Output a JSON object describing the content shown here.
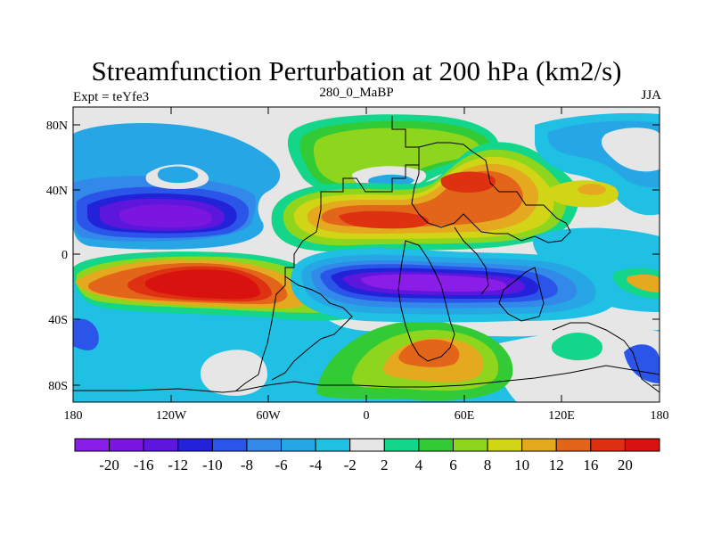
{
  "title": "Streamfunction Perturbation at 200 hPa (km2/s)",
  "subtitle_left": "Expt = teYfe3",
  "subtitle_center": "280_0_MaBP",
  "subtitle_right": "JJA",
  "yticks": [
    "80N",
    "40N",
    "0",
    "40S",
    "80S"
  ],
  "xticks": [
    "180",
    "120W",
    "60W",
    "0",
    "60E",
    "120E",
    "180"
  ],
  "colorbar": {
    "labels": [
      "-20",
      "-16",
      "-12",
      "-10",
      "-8",
      "-6",
      "-4",
      "-2",
      "2",
      "4",
      "6",
      "8",
      "10",
      "12",
      "16",
      "20"
    ],
    "colors": [
      "#8a1ee6",
      "#7a16e0",
      "#5c16dc",
      "#2222d8",
      "#2b55e8",
      "#3289ea",
      "#27a6e6",
      "#1fc0e4",
      "#e6e6e6",
      "#13d68a",
      "#32cb35",
      "#8ed51d",
      "#d2d516",
      "#e5a920",
      "#e2651a",
      "#de3112",
      "#d8120e"
    ]
  }
}
